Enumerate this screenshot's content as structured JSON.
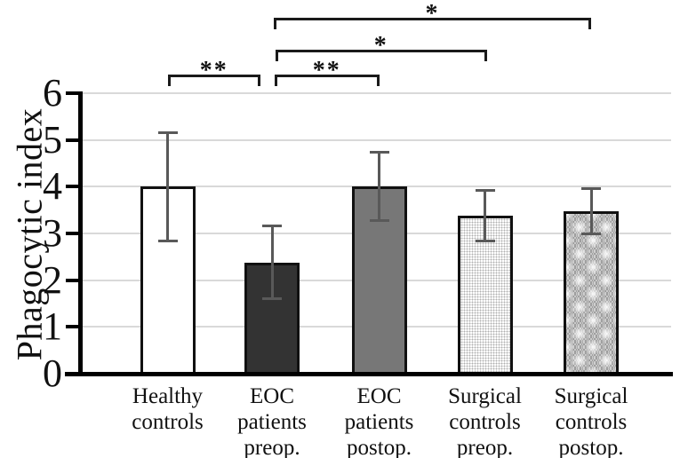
{
  "chart_data": {
    "type": "bar",
    "title": "",
    "xlabel": "",
    "ylabel": "Phagocytic index",
    "ylim": [
      0,
      6
    ],
    "yticks": [
      0,
      1,
      2,
      3,
      4,
      5,
      6
    ],
    "grid": true,
    "legend": false,
    "categories": [
      "Healthy controls",
      "EOC patients preop.",
      "EOC patients postop.",
      "Surgical controls preop.",
      "Surgical controls postop."
    ],
    "bars": [
      {
        "label": "Healthy controls",
        "label_lines": [
          "Healthy",
          "controls"
        ],
        "value": 4.0,
        "err_low": 2.82,
        "err_high": 5.17,
        "fill": "#ffffff",
        "pattern": "solid"
      },
      {
        "label": "EOC patients preop.",
        "label_lines": [
          "EOC",
          "patients",
          "preop."
        ],
        "value": 2.38,
        "err_low": 1.59,
        "err_high": 3.17,
        "fill": "#333333",
        "pattern": "solid"
      },
      {
        "label": "EOC patients postop.",
        "label_lines": [
          "EOC",
          "patients",
          "postop."
        ],
        "value": 4.0,
        "err_low": 3.27,
        "err_high": 4.74,
        "fill": "#777777",
        "pattern": "solid"
      },
      {
        "label": "Surgical controls preop.",
        "label_lines": [
          "Surgical",
          "controls",
          "preop."
        ],
        "value": 3.38,
        "err_low": 2.82,
        "err_high": 3.93,
        "fill": "#ffffff",
        "pattern": "dots"
      },
      {
        "label": "Surgical controls postop.",
        "label_lines": [
          "Surgical",
          "controls",
          "postop."
        ],
        "value": 3.48,
        "err_low": 2.99,
        "err_high": 3.96,
        "fill": "#d4d4d4",
        "pattern": "crosshatch"
      }
    ],
    "significance_brackets": [
      {
        "from": 0,
        "to": 1,
        "row": 0,
        "label": "**",
        "dx1": 0,
        "dx2": -13
      },
      {
        "from": 1,
        "to": 2,
        "row": 0,
        "label": "**",
        "dx1": 3,
        "dx2": 0
      },
      {
        "from": 1,
        "to": 3,
        "row": 1,
        "label": "*",
        "dx1": 4,
        "dx2": 2
      },
      {
        "from": 1,
        "to": 4,
        "row": 2,
        "label": "*",
        "dx1": 2,
        "dx2": 0
      }
    ]
  },
  "colors": {
    "background": "#ffffff",
    "axis": "#000000",
    "bar_border": "#111111",
    "gridline": "#d9d9d9",
    "error_bar": "#595959",
    "bracket": "#1a1a1a",
    "text": "#111111"
  }
}
